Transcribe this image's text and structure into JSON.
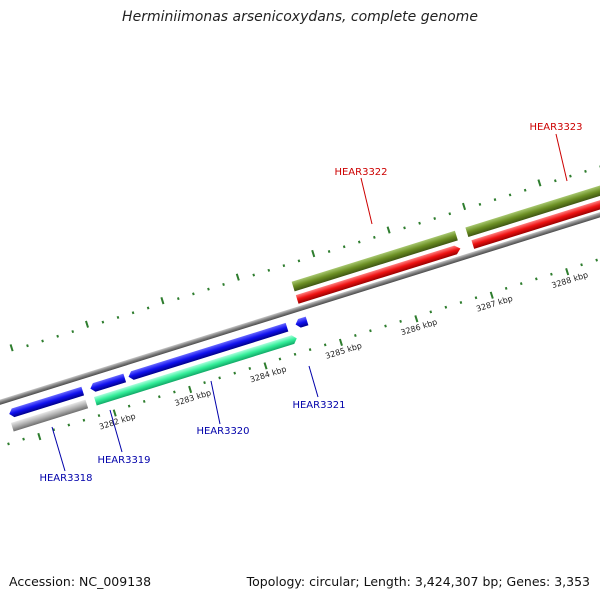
{
  "title": "Herminiimonas arsenicoxydans, complete genome",
  "footer": {
    "accession": "Accession: NC_009138",
    "summary": "Topology: circular; Length: 3,424,307 bp; Genes: 3,353"
  },
  "colors": {
    "backbone": "#808080",
    "tick": "#2e7d2e",
    "blue": "#1010ee",
    "mint": "#33ee99",
    "grey": "#b0b0b0",
    "red": "#ee1111",
    "olive": "#6b8e23",
    "label_blue": "#0000aa",
    "label_red": "#cc0000"
  },
  "kbp_labels": [
    "3282 kbp",
    "3283 kbp",
    "3284 kbp",
    "3285 kbp",
    "3286 kbp",
    "3287 kbp",
    "3288 kbp"
  ],
  "gene_labels": [
    "HEAR3318",
    "HEAR3319",
    "HEAR3320",
    "HEAR3321",
    "HEAR3322",
    "HEAR3323"
  ],
  "genes": [
    {
      "strand": "reverse",
      "color": "blue",
      "direction": "left"
    },
    {
      "strand": "reverse",
      "color": "blue",
      "direction": "left"
    },
    {
      "strand": "reverse",
      "color": "blue",
      "direction": "left"
    },
    {
      "strand": "reverse",
      "color": "blue",
      "direction": "left"
    },
    {
      "strand": "reverse",
      "color": "mint",
      "direction": "right"
    },
    {
      "strand": "reverse",
      "color": "grey",
      "direction": "none"
    },
    {
      "strand": "forward",
      "color": "red",
      "direction": "right"
    },
    {
      "strand": "forward",
      "color": "red",
      "direction": "none"
    },
    {
      "strand": "forward",
      "color": "olive",
      "direction": "none"
    },
    {
      "strand": "forward",
      "color": "olive",
      "direction": "none"
    }
  ]
}
